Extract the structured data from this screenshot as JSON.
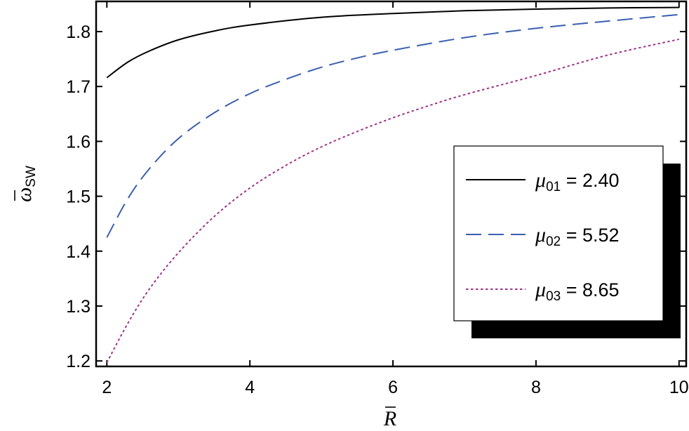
{
  "chart_data": {
    "type": "line",
    "xlabel": "R",
    "ylabel": "ω",
    "ylabel_subscript": "SW",
    "xlim": [
      1.85,
      10.1
    ],
    "ylim": [
      1.19,
      1.855
    ],
    "xticks": [
      2,
      4,
      6,
      8,
      10
    ],
    "yticks": [
      1.2,
      1.3,
      1.4,
      1.5,
      1.6,
      1.7,
      1.8
    ],
    "xtick_labels": [
      "2",
      "4",
      "6",
      "8",
      "10"
    ],
    "ytick_labels": [
      "1.2",
      "1.3",
      "1.4",
      "1.5",
      "1.6",
      "1.7",
      "1.8"
    ],
    "grid": false,
    "legend_position": "center-right",
    "series": [
      {
        "name": "μ01 = 2.40",
        "mu_symbol": "μ",
        "mu_subscript": "01",
        "value_text": " = 2.40",
        "color": "#000000",
        "dash": "solid",
        "x": [
          2.0,
          2.3,
          2.6,
          3.0,
          3.5,
          4.0,
          5.0,
          6.0,
          7.0,
          8.0,
          9.0,
          10.0
        ],
        "y": [
          1.716,
          1.745,
          1.765,
          1.785,
          1.801,
          1.812,
          1.826,
          1.833,
          1.838,
          1.841,
          1.843,
          1.844
        ]
      },
      {
        "name": "μ02 = 5.52",
        "mu_symbol": "μ",
        "mu_subscript": "02",
        "value_text": " = 5.52",
        "color": "#3a5fb0",
        "dash": "long-dash",
        "x": [
          2.0,
          2.3,
          2.6,
          3.0,
          3.5,
          4.0,
          4.5,
          5.0,
          5.5,
          6.0,
          7.0,
          8.0,
          9.0,
          10.0
        ],
        "y": [
          1.425,
          1.497,
          1.551,
          1.605,
          1.652,
          1.687,
          1.713,
          1.735,
          1.752,
          1.766,
          1.789,
          1.806,
          1.819,
          1.831
        ]
      },
      {
        "name": "μ03 = 8.65",
        "mu_symbol": "μ",
        "mu_subscript": "03",
        "value_text": " = 8.65",
        "color": "#a0368a",
        "dash": "dotted",
        "x": [
          2.0,
          2.3,
          2.6,
          3.0,
          3.5,
          4.0,
          4.5,
          5.0,
          5.5,
          6.0,
          6.5,
          7.0,
          8.0,
          9.0,
          10.0
        ],
        "y": [
          1.197,
          1.27,
          1.332,
          1.397,
          1.463,
          1.515,
          1.556,
          1.59,
          1.618,
          1.643,
          1.665,
          1.685,
          1.72,
          1.757,
          1.786
        ]
      }
    ]
  }
}
